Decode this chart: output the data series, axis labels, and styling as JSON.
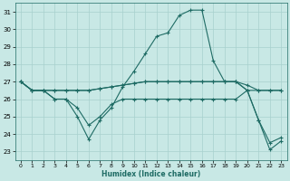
{
  "xlabel": "Humidex (Indice chaleur)",
  "bg_color": "#c8e8e5",
  "grid_color": "#a8d0cd",
  "line_color": "#1e6b64",
  "ylim": [
    22.5,
    31.5
  ],
  "xlim": [
    -0.5,
    23.5
  ],
  "yticks": [
    23,
    24,
    25,
    26,
    27,
    28,
    29,
    30,
    31
  ],
  "xticks": [
    0,
    1,
    2,
    3,
    4,
    5,
    6,
    7,
    8,
    9,
    10,
    11,
    12,
    13,
    14,
    15,
    16,
    17,
    18,
    19,
    20,
    21,
    22,
    23
  ],
  "line1_y": [
    27.0,
    26.5,
    26.5,
    26.0,
    26.0,
    25.0,
    23.7,
    24.8,
    25.5,
    26.7,
    27.6,
    28.6,
    29.6,
    29.8,
    30.8,
    31.1,
    31.1,
    28.2,
    27.0,
    27.0,
    26.5,
    24.8,
    23.1,
    23.6
  ],
  "line2_y": [
    27.0,
    26.5,
    26.5,
    26.5,
    26.5,
    26.5,
    26.5,
    26.6,
    26.7,
    26.8,
    26.9,
    27.0,
    27.0,
    27.0,
    27.0,
    27.0,
    27.0,
    27.0,
    27.0,
    27.0,
    26.5,
    26.5,
    26.5,
    26.5
  ],
  "line3_y": [
    27.0,
    26.5,
    26.5,
    26.5,
    26.5,
    26.5,
    26.5,
    26.6,
    26.7,
    26.8,
    26.9,
    27.0,
    27.0,
    27.0,
    27.0,
    27.0,
    27.0,
    27.0,
    27.0,
    27.0,
    26.8,
    26.5,
    26.5,
    26.5
  ],
  "line4_y": [
    27.0,
    26.5,
    26.5,
    26.0,
    26.0,
    25.5,
    24.5,
    25.0,
    25.7,
    26.0,
    26.0,
    26.0,
    26.0,
    26.0,
    26.0,
    26.0,
    26.0,
    26.0,
    26.0,
    26.0,
    26.5,
    24.8,
    23.5,
    23.8
  ]
}
